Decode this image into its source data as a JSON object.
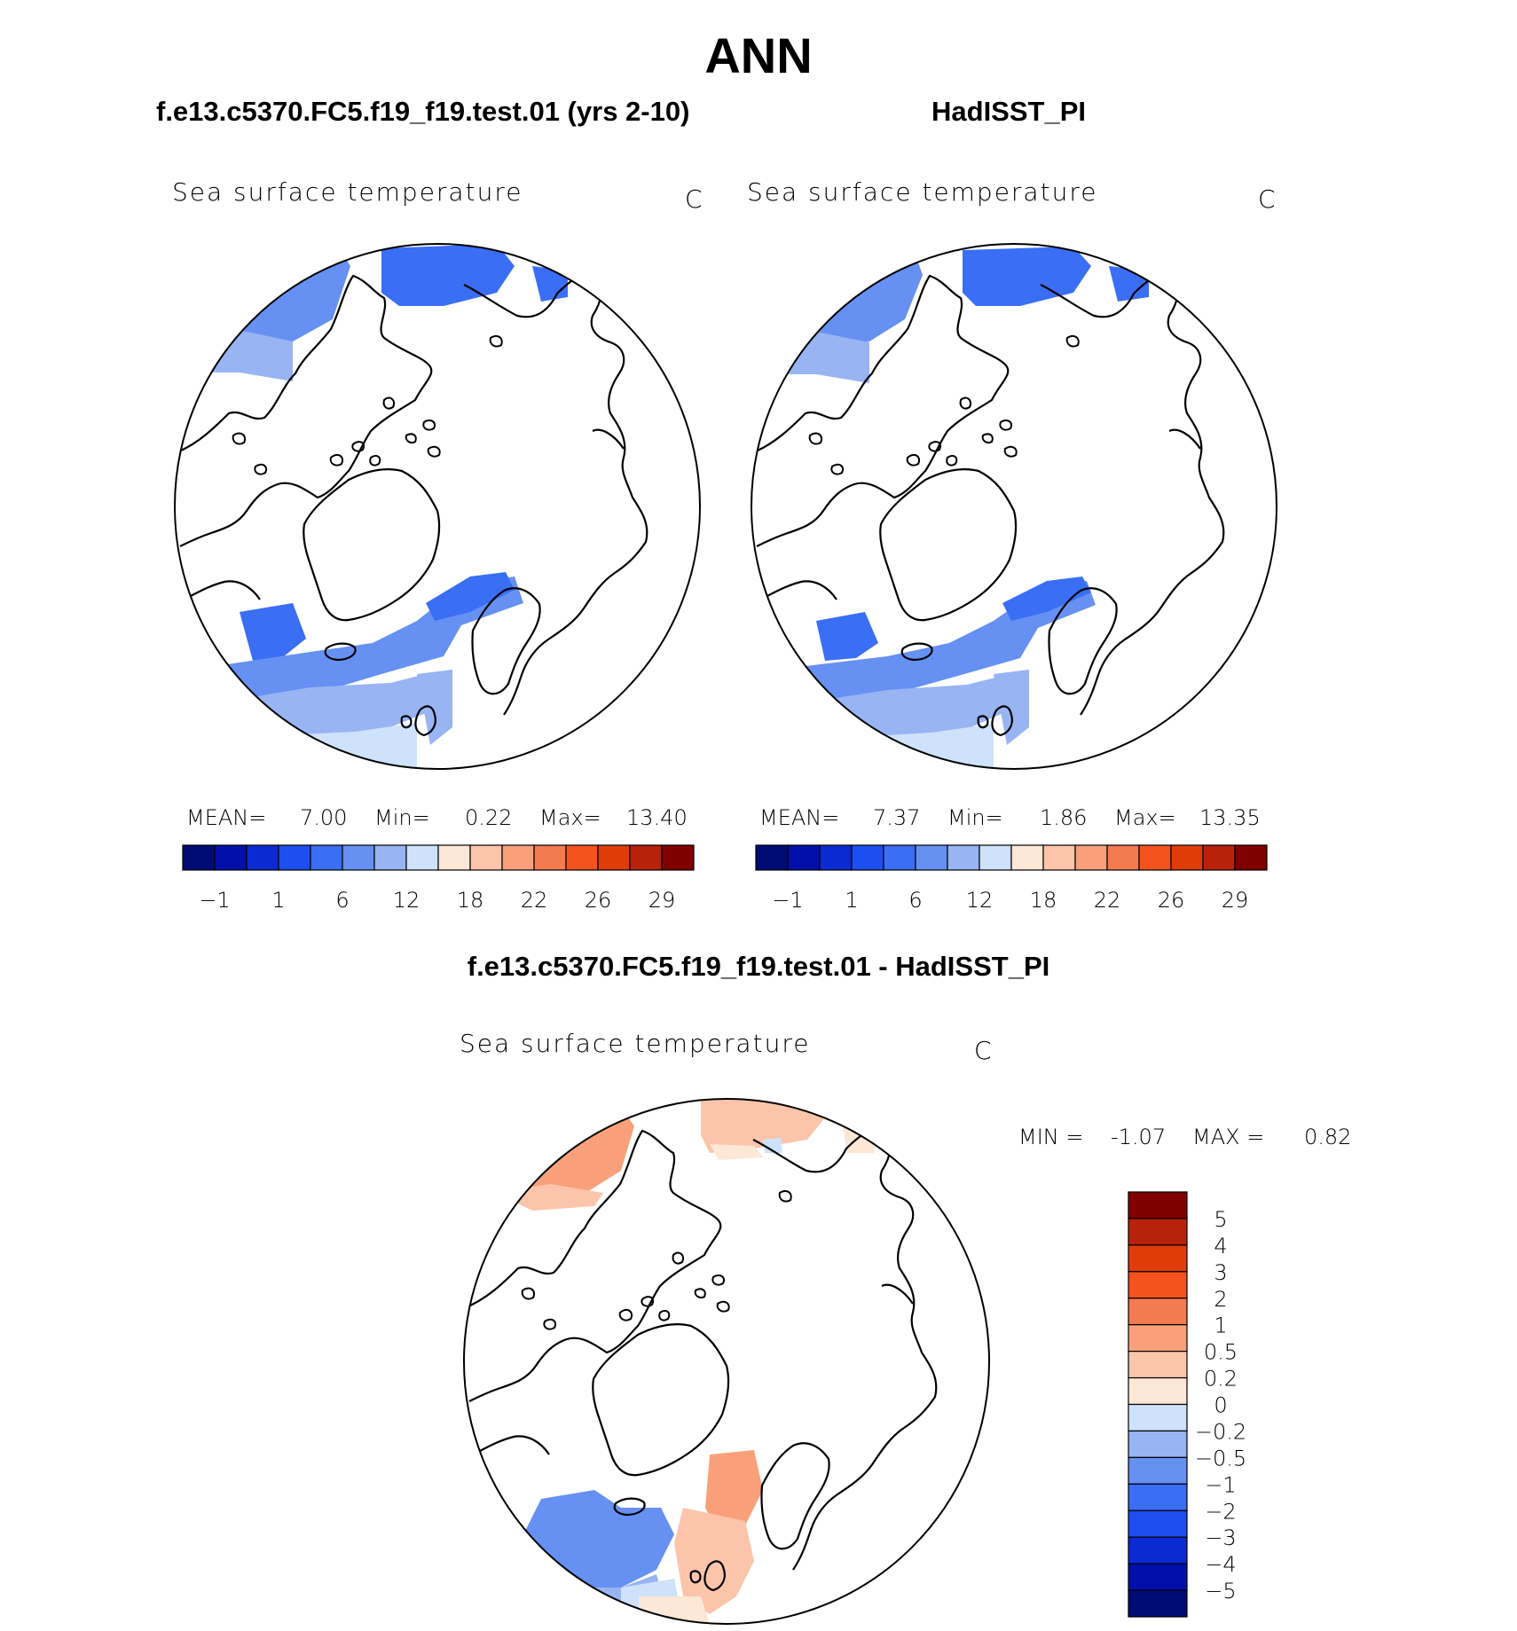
{
  "title": "ANN",
  "panels": [
    {
      "case": "f.e13.c5370.FC5.f19_f19.test.01 (yrs 2-10)",
      "variable": "Sea surface temperature",
      "units": "C",
      "stats": {
        "mean_label": "MEAN=",
        "mean": "7.00",
        "min_label": "Min=",
        "min": "0.22",
        "max_label": "Max=",
        "max": "13.40"
      }
    },
    {
      "case": "HadISST_PI",
      "variable": "Sea surface temperature",
      "units": "C",
      "stats": {
        "mean_label": "MEAN=",
        "mean": "7.37",
        "min_label": "Min=",
        "min": "1.86",
        "max_label": "Max=",
        "max": "13.35"
      }
    }
  ],
  "colorbar_horizontal": {
    "colors": [
      "#000c75",
      "#0010a8",
      "#0b2ad2",
      "#1d4ef0",
      "#3a6ef5",
      "#6690f2",
      "#98b4f3",
      "#cfe2fb",
      "#fde7d6",
      "#fcc4aa",
      "#f9a07a",
      "#f47a50",
      "#f5531e",
      "#e03c0a",
      "#b8220a",
      "#800000"
    ],
    "ticks": [
      "-1",
      "1",
      "6",
      "12",
      "18",
      "22",
      "26",
      "29"
    ]
  },
  "difference": {
    "title": "f.e13.c5370.FC5.f19_f19.test.01 - HadISST_PI",
    "variable": "Sea surface temperature",
    "units": "C",
    "min_label": "MIN =",
    "min": "-1.07",
    "max_label": "MAX =",
    "max": "0.82",
    "colors_top_to_bottom": [
      "#800000",
      "#b8220a",
      "#e03c0a",
      "#f5531e",
      "#f47a50",
      "#f9a07a",
      "#fcc4aa",
      "#fde7d6",
      "#cfe2fb",
      "#98b4f3",
      "#6690f2",
      "#3a6ef5",
      "#1d4ef0",
      "#0b2ad2",
      "#0010a8",
      "#000c75"
    ],
    "ticks_top_to_bottom": [
      "5",
      "4",
      "3",
      "2",
      "1",
      "0.5",
      "0.2",
      "0",
      "-0.2",
      "-0.5",
      "-1",
      "-2",
      "-3",
      "-4",
      "-5"
    ]
  }
}
